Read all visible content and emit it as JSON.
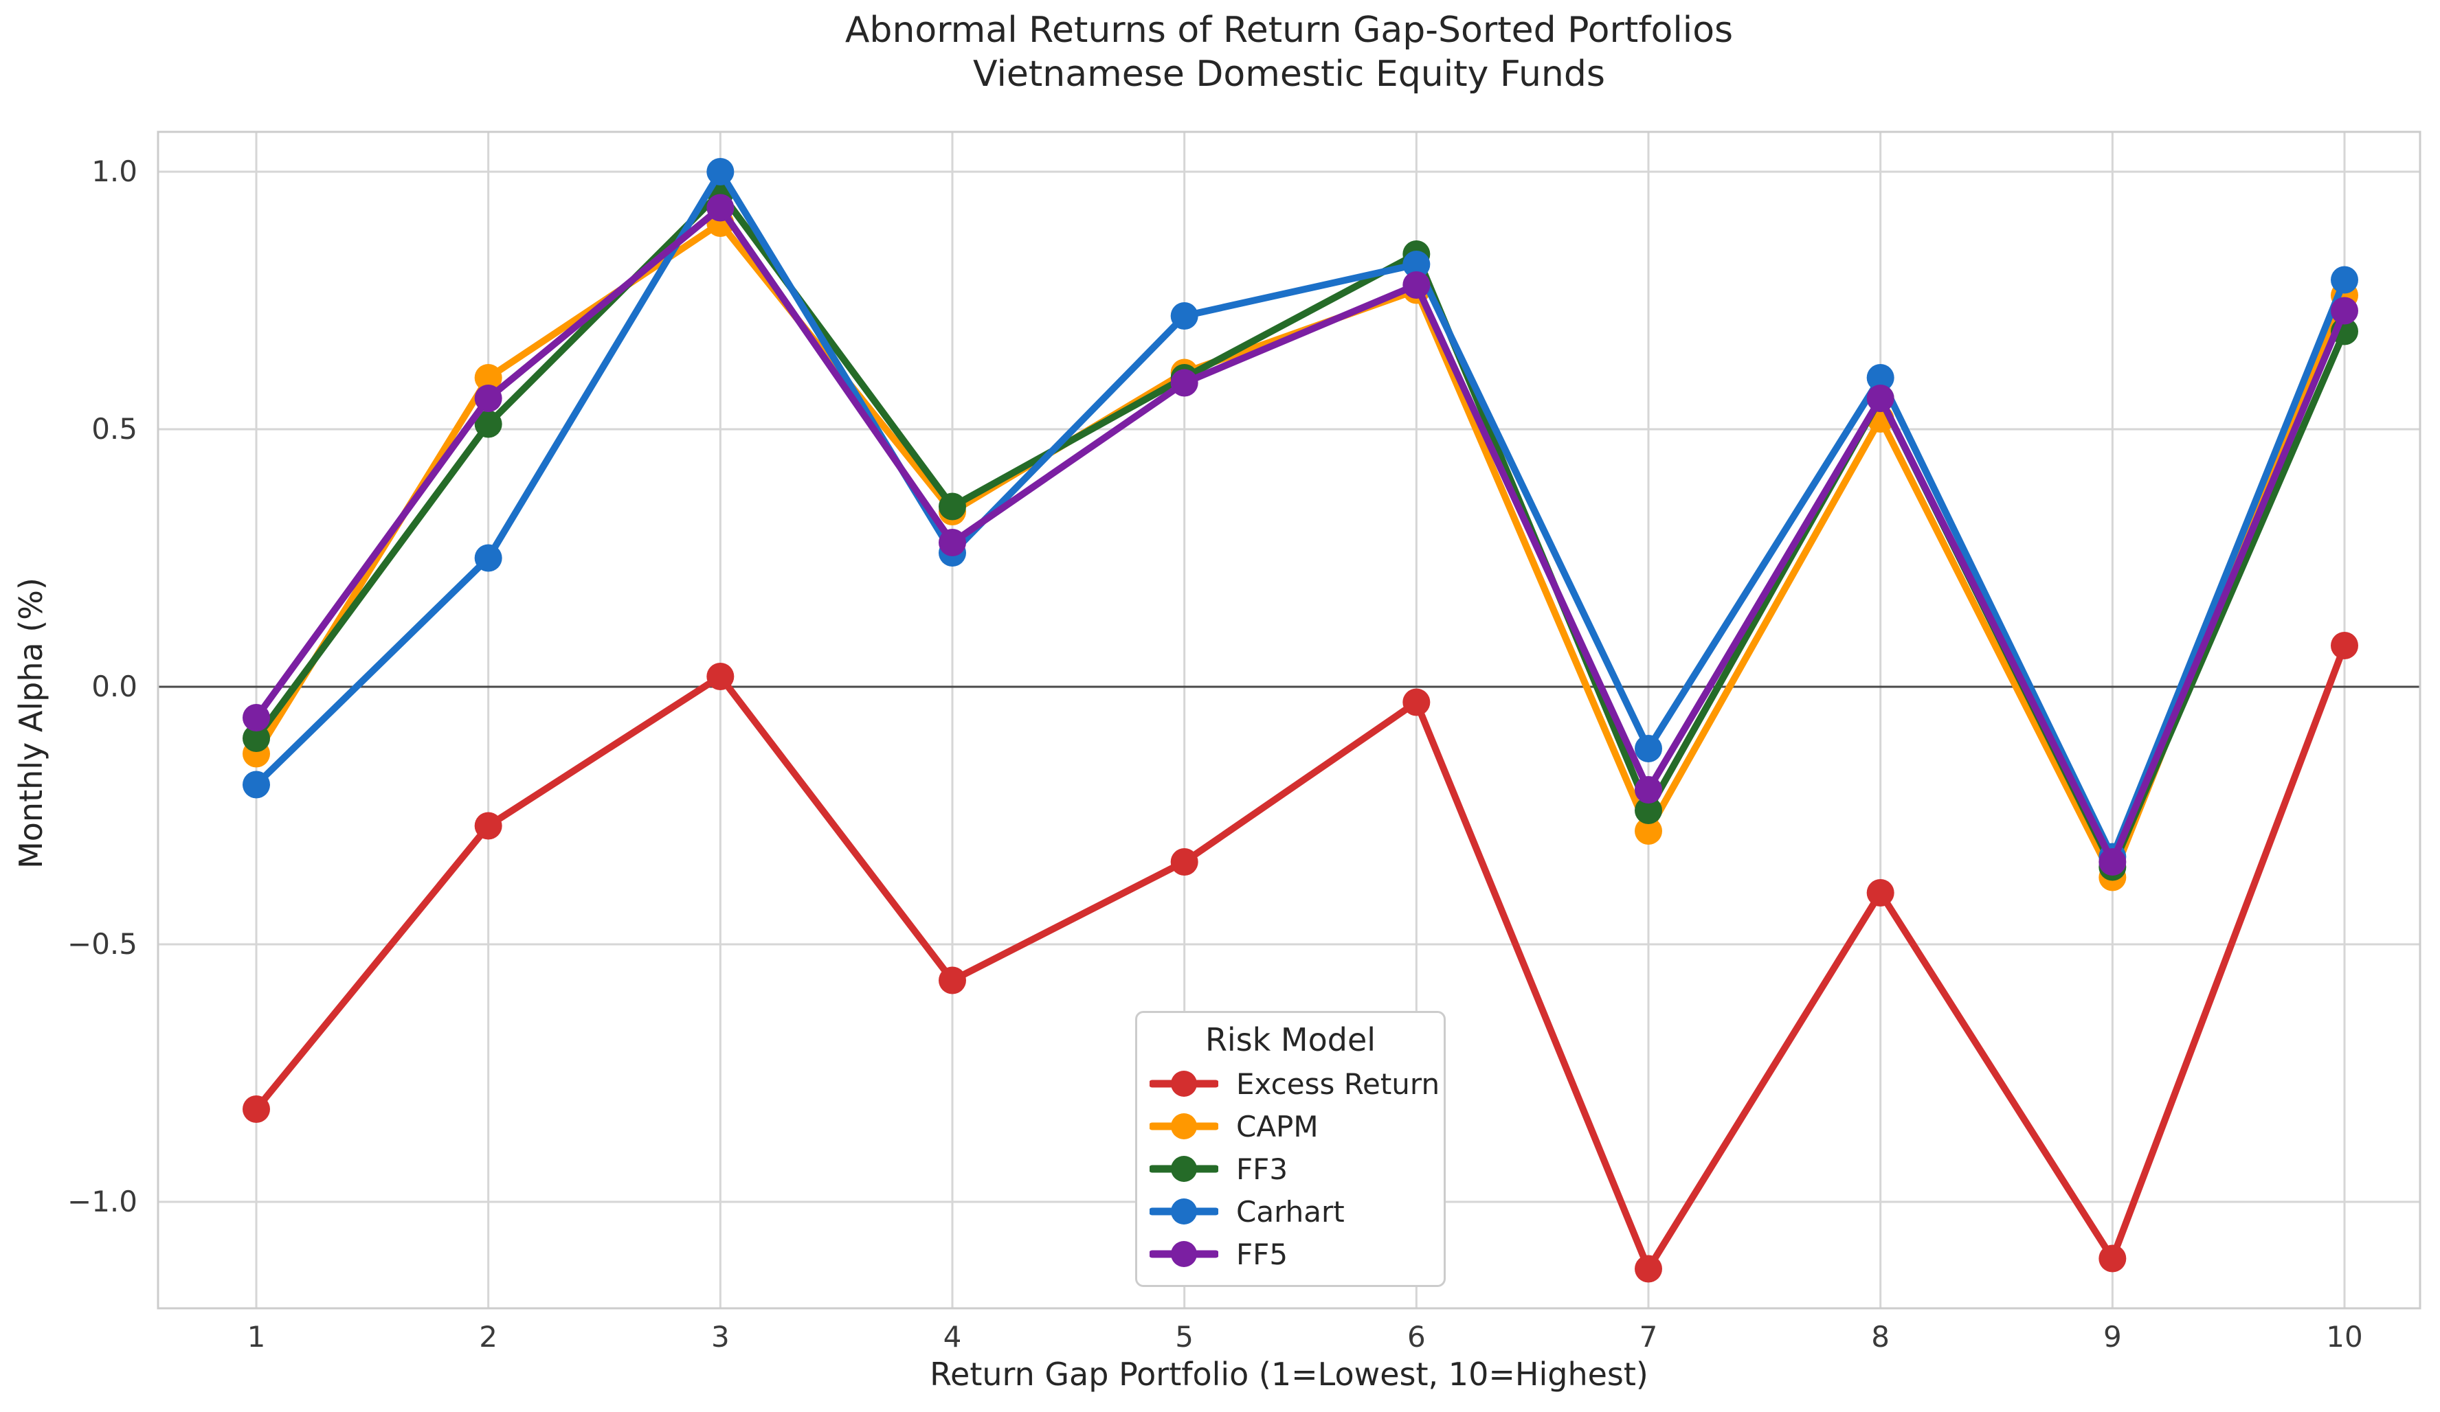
{
  "chart_data": {
    "type": "line",
    "title": "Abnormal Returns of Return Gap-Sorted Portfolios\nVietnamese Domestic Equity Funds",
    "title_lines": [
      "Abnormal Returns of Return Gap-Sorted Portfolios",
      "Vietnamese Domestic Equity Funds"
    ],
    "xlabel": "Return Gap Portfolio (1=Lowest, 10=Highest)",
    "ylabel": "Monthly Alpha (%)",
    "x": [
      1,
      2,
      3,
      4,
      5,
      6,
      7,
      8,
      9,
      10
    ],
    "xtick_labels": [
      "1",
      "2",
      "3",
      "4",
      "5",
      "6",
      "7",
      "8",
      "9",
      "10"
    ],
    "ytick_values": [
      1.0,
      0.5,
      0.0,
      -0.5,
      -1.0
    ],
    "ytick_labels": [
      "1.0",
      "0.5",
      "0.0",
      "−0.5",
      "−1.0"
    ],
    "ylim": [
      -1.21,
      1.08
    ],
    "grid": true,
    "zero_line": true,
    "legend_position": "lower center",
    "legend": {
      "title": "Risk Model",
      "entries": [
        "Excess Return",
        "CAPM",
        "FF3",
        "Carhart",
        "FF5"
      ]
    },
    "series": [
      {
        "name": "Excess Return",
        "color": "#d32f2f",
        "values": [
          -0.82,
          -0.27,
          0.02,
          -0.57,
          -0.34,
          -0.03,
          -1.13,
          -0.4,
          -1.11,
          0.08
        ]
      },
      {
        "name": "CAPM",
        "color": "#ff9800",
        "values": [
          -0.13,
          0.6,
          0.9,
          0.34,
          0.61,
          0.77,
          -0.28,
          0.52,
          -0.37,
          0.76
        ]
      },
      {
        "name": "FF3",
        "color": "#256b28",
        "values": [
          -0.1,
          0.51,
          0.96,
          0.35,
          0.6,
          0.84,
          -0.24,
          0.56,
          -0.35,
          0.69
        ]
      },
      {
        "name": "Carhart",
        "color": "#1c70c8",
        "values": [
          -0.19,
          0.25,
          1.0,
          0.26,
          0.72,
          0.82,
          -0.12,
          0.6,
          -0.33,
          0.79
        ]
      },
      {
        "name": "FF5",
        "color": "#7b1fa2",
        "values": [
          -0.06,
          0.56,
          0.93,
          0.28,
          0.59,
          0.78,
          -0.2,
          0.56,
          -0.34,
          0.73
        ]
      }
    ],
    "style": {
      "grid_color": "#d6d6d6",
      "spine_color": "#cccccc",
      "zero_line_color": "#4a4a4a",
      "background": "#ffffff"
    }
  }
}
